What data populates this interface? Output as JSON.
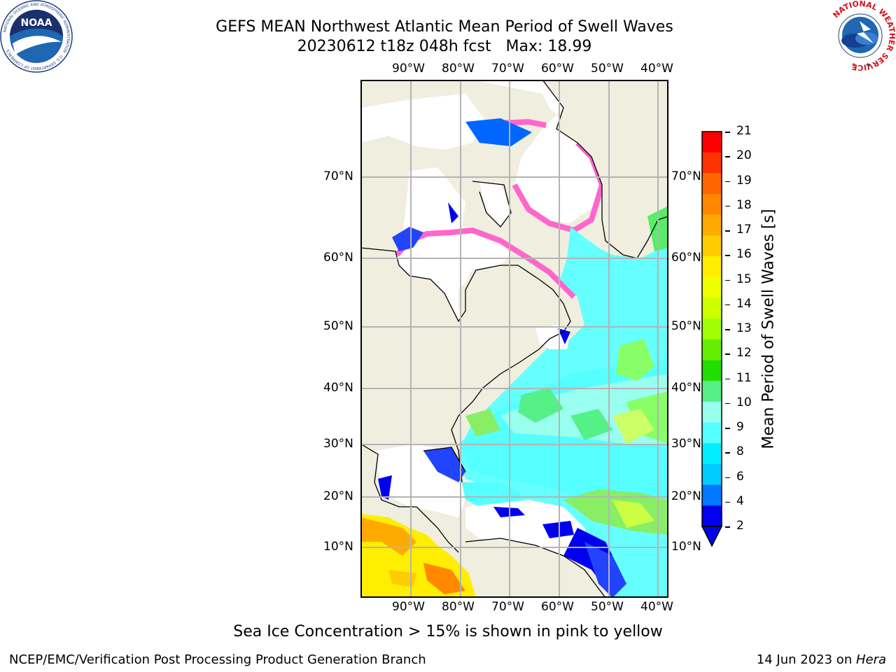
{
  "header": {
    "title_line1": "GEFS MEAN Northwest Atlantic Mean Period of Swell Waves",
    "title_line2": "20230612 t18z 048h fcst   Max: 18.99"
  },
  "logos": {
    "noaa_text": "NOAA",
    "noaa_ring_text": "NATIONAL OCEANIC AND ATMOSPHERIC ADMINISTRATION · U.S. DEPARTMENT OF COMMERCE ·",
    "nws_ring_text": "NATIONAL WEATHER SERVICE"
  },
  "map": {
    "lon_labels": [
      "90°W",
      "80°W",
      "70°W",
      "60°W",
      "50°W",
      "40°W"
    ],
    "lat_labels": [
      "70°N",
      "60°N",
      "50°N",
      "40°N",
      "30°N",
      "20°N",
      "10°N"
    ],
    "colors": {
      "land": "#efeedf",
      "no_data_sea": "#ffffff",
      "grid": "#b4b4b4",
      "coast": "#000000"
    }
  },
  "colorbar": {
    "label": "Mean Period of Swell Waves [s]",
    "ticks": [
      "21",
      "20",
      "19",
      "18",
      "17",
      "16",
      "15",
      "14",
      "13",
      "12",
      "11",
      "10",
      "9",
      "8",
      "6",
      "4",
      "2"
    ],
    "colors_top_to_bottom": [
      "#ff0000",
      "#ff3300",
      "#ff6600",
      "#ff8800",
      "#ffaa00",
      "#ffcc00",
      "#ffee00",
      "#eeff00",
      "#ccff00",
      "#a0ff00",
      "#66ee00",
      "#22dd00",
      "#55f088",
      "#99ffee",
      "#55ffff",
      "#00eeff",
      "#00ccff",
      "#0077ff",
      "#0000ee"
    ]
  },
  "footer": {
    "caption": "Sea Ice Concentration > 15% is shown in pink to yellow",
    "left": "NCEP/EMC/Verification Post Processing Product Generation Branch",
    "right_date": "14 Jun 2023 on ",
    "right_host": "Hera"
  }
}
